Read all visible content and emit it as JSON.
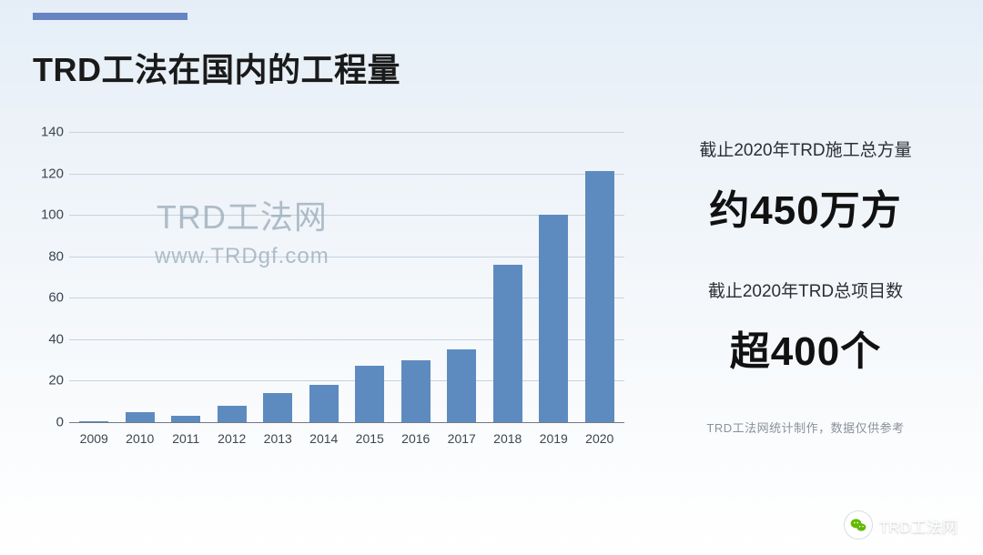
{
  "title_strong": "TRD",
  "title_rest": "工法在国内的工程量",
  "chart": {
    "type": "bar",
    "categories": [
      "2009",
      "2010",
      "2011",
      "2012",
      "2013",
      "2014",
      "2015",
      "2016",
      "2017",
      "2018",
      "2019",
      "2020"
    ],
    "values": [
      0.5,
      5,
      3,
      8,
      14,
      18,
      27,
      30,
      35,
      76,
      100,
      121
    ],
    "bar_color": "#5e8bbf",
    "ylim": [
      0,
      140
    ],
    "ytick_step": 20,
    "yticks": [
      0,
      20,
      40,
      60,
      80,
      100,
      120,
      140
    ],
    "grid_color": "#c7d2dc",
    "axis_color": "#707a85",
    "label_fontsize": 15,
    "xlabel_fontsize": 14,
    "background": "transparent"
  },
  "watermark": {
    "line1": "TRD工法网",
    "line2": "www.TRDgf.com",
    "color": "#98aab8"
  },
  "stats": {
    "block1_label": "截止2020年TRD施工总方量",
    "block1_value": "约450万方",
    "block2_label": "截止2020年TRD总项目数",
    "block2_value": "超400个",
    "footnote": "TRD工法网统计制作，数据仅供参考"
  },
  "brand": {
    "icon_text": "TRD",
    "text": "TRD工法网"
  },
  "colors": {
    "accent": "#6784c2",
    "title": "#1a1a1a",
    "stat_value": "#111111",
    "footnote": "#8a919a",
    "bg_top": "#e5eef7",
    "bg_bottom": "#ffffff"
  }
}
